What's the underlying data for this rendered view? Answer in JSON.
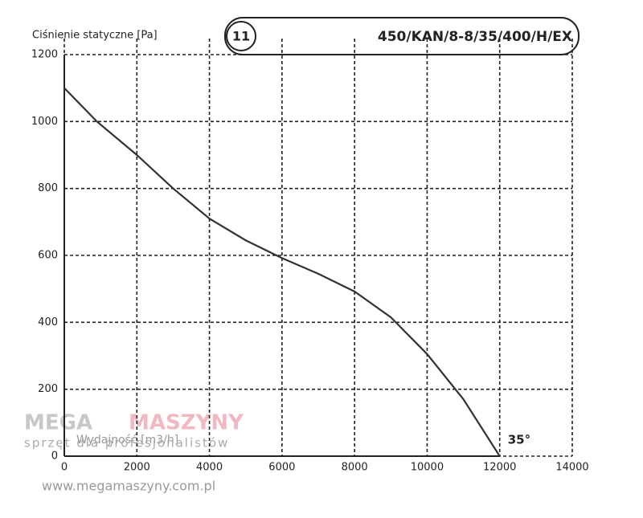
{
  "chart_data": {
    "type": "line",
    "chart_number": "11",
    "title": "450/KAN/8-8/35/400/H/EX",
    "ylabel": "Ciśnienie statyczne [Pa]",
    "xlabel": "Wydajność [m3/h]",
    "annotation": "35°",
    "x": [
      0,
      900,
      2000,
      3000,
      4000,
      5000,
      6000,
      7000,
      8000,
      9000,
      10000,
      11000,
      12000
    ],
    "series": [
      {
        "name": "35°",
        "color": "#333333",
        "values": [
          1100,
          1000,
          900,
          800,
          710,
          645,
          592,
          545,
          492,
          415,
          305,
          170,
          0
        ]
      }
    ],
    "xlim": [
      0,
      14000
    ],
    "xticks": [
      0,
      2000,
      4000,
      6000,
      8000,
      10000,
      12000,
      14000
    ],
    "ylim": [
      0,
      1200
    ],
    "yticks": [
      0,
      200,
      400,
      600,
      800,
      1000,
      1200
    ],
    "grid": true
  },
  "watermark": {
    "brand_left": "MEGA",
    "brand_right": "MASZYNY",
    "tagline": "sprzęt dla profesjonalistów",
    "url": "www.megamaszyny.com.pl"
  }
}
